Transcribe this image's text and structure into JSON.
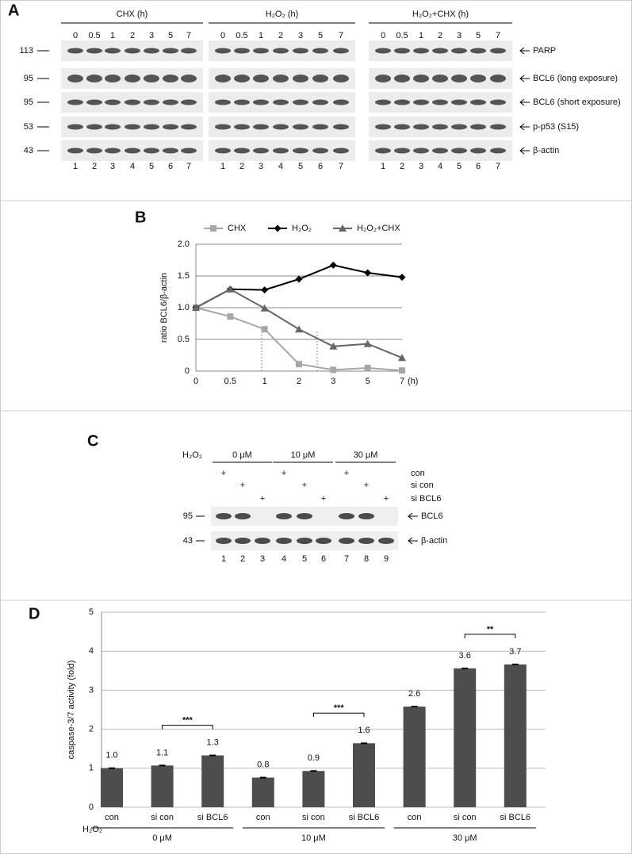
{
  "panel_a": {
    "label": "A",
    "groups": [
      {
        "title": "CHX (h)",
        "timepoints": [
          "0",
          "0.5",
          "1",
          "2",
          "3",
          "5",
          "7"
        ],
        "lanes": [
          "1",
          "2",
          "3",
          "4",
          "5",
          "6",
          "7"
        ]
      },
      {
        "title": "H₂O₂ (h)",
        "timepoints": [
          "0",
          "0.5",
          "1",
          "2",
          "3",
          "5",
          "7"
        ],
        "lanes": [
          "1",
          "2",
          "3",
          "4",
          "5",
          "6",
          "7"
        ]
      },
      {
        "title": "H₂O₂+CHX (h)",
        "timepoints": [
          "0",
          "0.5",
          "1",
          "2",
          "3",
          "5",
          "7"
        ],
        "lanes": [
          "1",
          "2",
          "3",
          "4",
          "5",
          "6",
          "7"
        ]
      }
    ],
    "markers": [
      "113",
      "95",
      "95",
      "53",
      "43"
    ],
    "rows": [
      "PARP",
      "BCL6 (long exposure)",
      "BCL6 (short exposure)",
      "p-p53 (S15)",
      "β-actin"
    ]
  },
  "panel_labels": {
    "b": "B",
    "d": "D"
  },
  "chart_data": [
    {
      "type": "line",
      "y_label": "ratio BCL6/β-actin",
      "x_unit": "(h)",
      "categories": [
        "0",
        "0.5",
        "1",
        "2",
        "3",
        "5",
        "7"
      ],
      "ylim": [
        0,
        2
      ],
      "yticks": [
        0,
        0.5,
        {
          "value": 1,
          "label": "1.0"
        },
        {
          "value": 1.5,
          "label": "1.5"
        },
        {
          "value": 2,
          "label": "2.0"
        }
      ],
      "grid": true,
      "series": [
        {
          "name": "CHX",
          "color": "#a6a6a6",
          "marker": "square",
          "values": [
            1.0,
            0.86,
            0.66,
            0.11,
            0.02,
            0.05,
            0.01
          ]
        },
        {
          "name": "H₂O₂",
          "color": "#000000",
          "marker": "diamond",
          "values": [
            1.0,
            1.29,
            1.28,
            1.45,
            1.67,
            1.55,
            1.48
          ]
        },
        {
          "name": "H₂O₂+CHX",
          "color": "#666666",
          "marker": "triangle",
          "values": [
            1.0,
            1.29,
            0.99,
            0.66,
            0.39,
            0.43,
            0.21
          ]
        }
      ]
    },
    {
      "type": "bar",
      "y_label": "caspase-3/7 activity (fold)",
      "color": "#4d4d4d",
      "categories": [
        "con",
        "si con",
        "si BCL6",
        "con",
        "si con",
        "si BCL6",
        "con",
        "si con",
        "si BCL6"
      ],
      "values": [
        1.0,
        1.07,
        1.33,
        0.76,
        0.93,
        1.64,
        2.58,
        3.56,
        3.66
      ],
      "value_labels": [
        "1.0",
        "1.1",
        "1.3",
        "0.8",
        "0.9",
        "1.6",
        "2.6",
        "3.6",
        "3.7"
      ],
      "errors": [
        0.01,
        0.01,
        0.01,
        0.01,
        0.01,
        0.01,
        0.01,
        0.01,
        0.01
      ],
      "ylim": [
        0,
        5
      ],
      "yticks": [
        0,
        1,
        2,
        3,
        4,
        5
      ],
      "grid": true,
      "group_axis_label": "H₂O₂",
      "groups": [
        "0 μM",
        "10 μM",
        "30 μM"
      ],
      "annotations": [
        "***",
        "***",
        "**"
      ]
    }
  ],
  "panel_c": {
    "label": "C",
    "treatment_label": "H₂O₂",
    "doses": [
      "0 μM",
      "10 μM",
      "30 μM"
    ],
    "conditions": [
      {
        "name": "con",
        "lanes": [
          "+",
          null,
          null,
          "+",
          null,
          null,
          "+",
          null,
          null
        ]
      },
      {
        "name": "si con",
        "lanes": [
          null,
          "+",
          null,
          null,
          "+",
          null,
          null,
          "+",
          null
        ]
      },
      {
        "name": "si BCL6",
        "lanes": [
          null,
          null,
          "+",
          null,
          null,
          "+",
          null,
          null,
          "+"
        ]
      }
    ],
    "markers": [
      "95",
      "43"
    ],
    "rows": [
      "BCL6",
      "β-actin"
    ],
    "lanes": [
      "1",
      "2",
      "3",
      "4",
      "5",
      "6",
      "7",
      "8",
      "9"
    ]
  }
}
